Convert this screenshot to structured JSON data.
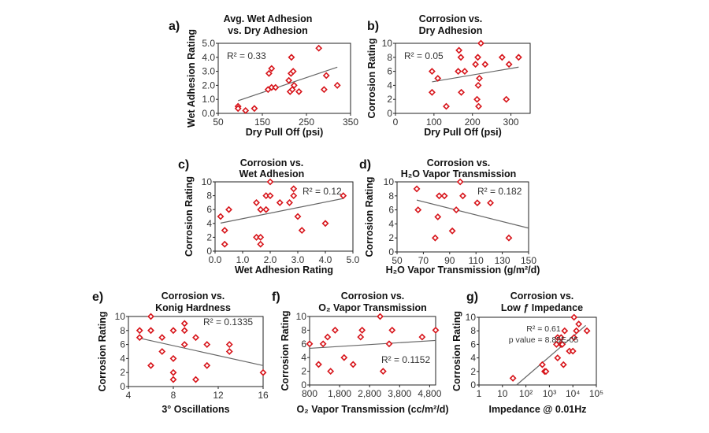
{
  "chart_data": [
    {
      "id": "a",
      "type": "scatter",
      "panel_label": "a)",
      "title": [
        "Avg. Wet Adhesion",
        "vs. Dry Adhesion"
      ],
      "xlabel": "Dry Pull Off (psi)",
      "ylabel": "Wet Adhesion Rating",
      "xlim": [
        50,
        350
      ],
      "ylim": [
        0,
        5
      ],
      "xticks": [
        50,
        150,
        250,
        350
      ],
      "xtick_labels": [
        "50",
        "150",
        "250",
        "350"
      ],
      "yticks": [
        0,
        1,
        2,
        3,
        4,
        5
      ],
      "ytick_labels": [
        "0.0",
        "1.0",
        "2.0",
        "3.0",
        "4.0",
        "5.0"
      ],
      "annotation": [
        "R² = 0.33"
      ],
      "points": [
        [
          95,
          0.5
        ],
        [
          95,
          0.35
        ],
        [
          112,
          0.2
        ],
        [
          132,
          0.35
        ],
        [
          163,
          1.7
        ],
        [
          165,
          2.85
        ],
        [
          171,
          3.2
        ],
        [
          171,
          1.85
        ],
        [
          180,
          1.85
        ],
        [
          210,
          2.35
        ],
        [
          213,
          1.55
        ],
        [
          215,
          2.85
        ],
        [
          216,
          4.0
        ],
        [
          218,
          1.7
        ],
        [
          220,
          3.0
        ],
        [
          222,
          2.0
        ],
        [
          233,
          1.55
        ],
        [
          278,
          4.65
        ],
        [
          290,
          1.7
        ],
        [
          295,
          2.7
        ],
        [
          320,
          2.0
        ]
      ],
      "trendline": [
        [
          95,
          0.9
        ],
        [
          320,
          3.3
        ]
      ]
    },
    {
      "id": "b",
      "type": "scatter",
      "panel_label": "b)",
      "title": [
        "Corrosion vs.",
        "Dry Adhesion"
      ],
      "xlabel": "Dry Pull Off (psi)",
      "ylabel": "Corrosion Rating",
      "xlim": [
        0,
        350
      ],
      "ylim": [
        0,
        10
      ],
      "xticks": [
        0,
        100,
        200,
        300
      ],
      "xtick_labels": [
        "0",
        "100",
        "200",
        "300"
      ],
      "yticks": [
        0,
        2,
        4,
        6,
        8,
        10
      ],
      "ytick_labels": [
        "0",
        "2",
        "4",
        "6",
        "8",
        "10"
      ],
      "annotation": [
        "R² = 0.05"
      ],
      "points": [
        [
          95,
          6
        ],
        [
          95,
          3
        ],
        [
          110,
          5
        ],
        [
          132,
          1
        ],
        [
          163,
          6
        ],
        [
          165,
          9
        ],
        [
          170,
          8
        ],
        [
          171,
          3
        ],
        [
          180,
          6
        ],
        [
          208,
          7
        ],
        [
          212,
          2
        ],
        [
          214,
          8
        ],
        [
          215,
          4
        ],
        [
          216,
          1
        ],
        [
          218,
          5
        ],
        [
          222,
          10
        ],
        [
          233,
          7
        ],
        [
          277,
          8
        ],
        [
          288,
          2
        ],
        [
          295,
          7
        ],
        [
          320,
          8
        ]
      ],
      "trendline": [
        [
          95,
          4.5
        ],
        [
          320,
          6.6
        ]
      ]
    },
    {
      "id": "c",
      "type": "scatter",
      "panel_label": "c)",
      "title": [
        "Corrosion vs.",
        "Wet Adhesion"
      ],
      "xlabel": "Wet Adhesion Rating",
      "ylabel": "Corrosion Rating",
      "xlim": [
        0,
        5
      ],
      "ylim": [
        0,
        10
      ],
      "xticks": [
        0,
        1,
        2,
        3,
        4,
        5
      ],
      "xtick_labels": [
        "0.0",
        "1.0",
        "2.0",
        "3.0",
        "4.0",
        "5.0"
      ],
      "yticks": [
        0,
        2,
        4,
        6,
        8,
        10
      ],
      "ytick_labels": [
        "0",
        "2",
        "4",
        "6",
        "8",
        "10"
      ],
      "annotation": [
        "R² = 0.12"
      ],
      "points": [
        [
          0.2,
          5
        ],
        [
          0.35,
          3
        ],
        [
          0.35,
          1
        ],
        [
          0.5,
          6
        ],
        [
          1.5,
          7
        ],
        [
          1.5,
          2
        ],
        [
          1.65,
          6
        ],
        [
          1.65,
          2
        ],
        [
          1.65,
          1
        ],
        [
          1.85,
          8
        ],
        [
          1.85,
          6
        ],
        [
          2.0,
          10
        ],
        [
          2.0,
          8
        ],
        [
          2.35,
          7
        ],
        [
          2.7,
          7
        ],
        [
          2.85,
          9
        ],
        [
          2.85,
          8
        ],
        [
          3.0,
          5
        ],
        [
          3.15,
          3
        ],
        [
          4.0,
          4
        ],
        [
          4.65,
          8
        ]
      ],
      "trendline": [
        [
          0.2,
          4.05
        ],
        [
          4.65,
          7.6
        ]
      ]
    },
    {
      "id": "d",
      "type": "scatter",
      "panel_label": "d)",
      "title": [
        "Corrosion vs.",
        "H₂O Vapor Transmission"
      ],
      "xlabel": "H₂O Vapor Transmission (g/m²/d)",
      "ylabel": "Corrosion Rating",
      "xlim": [
        50,
        150
      ],
      "ylim": [
        0,
        10
      ],
      "xticks": [
        50,
        70,
        90,
        110,
        130,
        150
      ],
      "xtick_labels": [
        "50",
        "70",
        "90",
        "110",
        "130",
        "150"
      ],
      "yticks": [
        0,
        2,
        4,
        6,
        8,
        10
      ],
      "ytick_labels": [
        "0",
        "2",
        "4",
        "6",
        "8",
        "10"
      ],
      "annotation": [
        "R² = 0.182"
      ],
      "points": [
        [
          65,
          9
        ],
        [
          66,
          6
        ],
        [
          79,
          2
        ],
        [
          81,
          5
        ],
        [
          82,
          8
        ],
        [
          86,
          8
        ],
        [
          92,
          3
        ],
        [
          95,
          6
        ],
        [
          98,
          10
        ],
        [
          100,
          8
        ],
        [
          111,
          7
        ],
        [
          121,
          7
        ],
        [
          135,
          2
        ]
      ],
      "trendline": [
        [
          65,
          7.4
        ],
        [
          150,
          3.4
        ]
      ]
    },
    {
      "id": "e",
      "type": "scatter",
      "panel_label": "e)",
      "title": [
        "Corrosion vs.",
        "Konig Hardness"
      ],
      "xlabel": "3° Oscillations",
      "ylabel": "Corrosion Rating",
      "xlim": [
        4,
        16
      ],
      "ylim": [
        0,
        10
      ],
      "xticks": [
        4,
        8,
        12,
        16
      ],
      "xtick_labels": [
        "4",
        "8",
        "12",
        "16"
      ],
      "yticks": [
        0,
        2,
        4,
        6,
        8,
        10
      ],
      "ytick_labels": [
        "0",
        "2",
        "4",
        "6",
        "8",
        "10"
      ],
      "annotation": [
        "R² = 0.1335"
      ],
      "points": [
        [
          5,
          8
        ],
        [
          5,
          7
        ],
        [
          6,
          10
        ],
        [
          6,
          8
        ],
        [
          6,
          3
        ],
        [
          7,
          7
        ],
        [
          7,
          5
        ],
        [
          8,
          8
        ],
        [
          8,
          4
        ],
        [
          8,
          2
        ],
        [
          8,
          1
        ],
        [
          9,
          9
        ],
        [
          9,
          8
        ],
        [
          9,
          6
        ],
        [
          10,
          7
        ],
        [
          10,
          1
        ],
        [
          11,
          6
        ],
        [
          11,
          3
        ],
        [
          13,
          6
        ],
        [
          13,
          5
        ],
        [
          16,
          2
        ]
      ],
      "trendline": [
        [
          5,
          6.9
        ],
        [
          16,
          3
        ]
      ]
    },
    {
      "id": "f",
      "type": "scatter",
      "panel_label": "f)",
      "title": [
        "Corrosion vs.",
        "O₂ Vapor Transmission"
      ],
      "xlabel": "O₂ Vapor Transmission (cc/m²/d)",
      "ylabel": "Corrosion Rating",
      "xlim": [
        800,
        5000
      ],
      "ylim": [
        0,
        10
      ],
      "xticks": [
        800,
        1800,
        2800,
        3800,
        4800
      ],
      "xtick_labels": [
        "800",
        "1,800",
        "2,800",
        "3,800",
        "4,800"
      ],
      "yticks": [
        0,
        2,
        4,
        6,
        8,
        10
      ],
      "ytick_labels": [
        "0",
        "2",
        "4",
        "6",
        "8",
        "10"
      ],
      "annotation": [
        "R² = 0.1152"
      ],
      "points": [
        [
          800,
          6
        ],
        [
          1100,
          3
        ],
        [
          1250,
          6
        ],
        [
          1400,
          7
        ],
        [
          1500,
          2
        ],
        [
          1650,
          8
        ],
        [
          1950,
          4
        ],
        [
          2250,
          3
        ],
        [
          2500,
          7
        ],
        [
          2550,
          8
        ],
        [
          3150,
          10
        ],
        [
          3250,
          2
        ],
        [
          3450,
          6
        ],
        [
          3550,
          8
        ],
        [
          4550,
          7
        ],
        [
          5000,
          8
        ]
      ],
      "trendline": [
        [
          800,
          5.35
        ],
        [
          5000,
          6.5
        ]
      ]
    },
    {
      "id": "g",
      "type": "scatter",
      "panel_label": "g)",
      "title": [
        "Corrosion vs.",
        "Low ƒ Impedance"
      ],
      "xlabel": "Impedance @ 0.01Hz",
      "ylabel": "Corrosion Rating",
      "xscale": "log10",
      "xlim": [
        1,
        100000
      ],
      "ylim": [
        0,
        10
      ],
      "xticks": [
        1,
        10,
        100,
        1000,
        10000,
        100000
      ],
      "xtick_labels": [
        "1",
        "10",
        "10²",
        "10³",
        "10⁴",
        "10⁵"
      ],
      "yticks": [
        0,
        2,
        4,
        6,
        8,
        10
      ],
      "ytick_labels": [
        "0",
        "2",
        "4",
        "6",
        "8",
        "10"
      ],
      "annotation": [
        "R² = 0.61",
        "p value = 8.85E-05"
      ],
      "points": [
        [
          28,
          1
        ],
        [
          500,
          3
        ],
        [
          630,
          2
        ],
        [
          710,
          2
        ],
        [
          2000,
          6
        ],
        [
          2240,
          4
        ],
        [
          2240,
          7
        ],
        [
          3160,
          7
        ],
        [
          3160,
          6
        ],
        [
          3550,
          6
        ],
        [
          3980,
          3
        ],
        [
          4470,
          8
        ],
        [
          7080,
          5
        ],
        [
          10000,
          5
        ],
        [
          11200,
          10
        ],
        [
          11200,
          7
        ],
        [
          14100,
          8
        ],
        [
          17800,
          9
        ],
        [
          39800,
          8
        ]
      ],
      "trendline": [
        [
          40,
          0
        ],
        [
          35500,
          8.8
        ]
      ]
    }
  ],
  "colors": {
    "marker": "#d7141a",
    "trend": "#666666",
    "axis": "#222222"
  }
}
